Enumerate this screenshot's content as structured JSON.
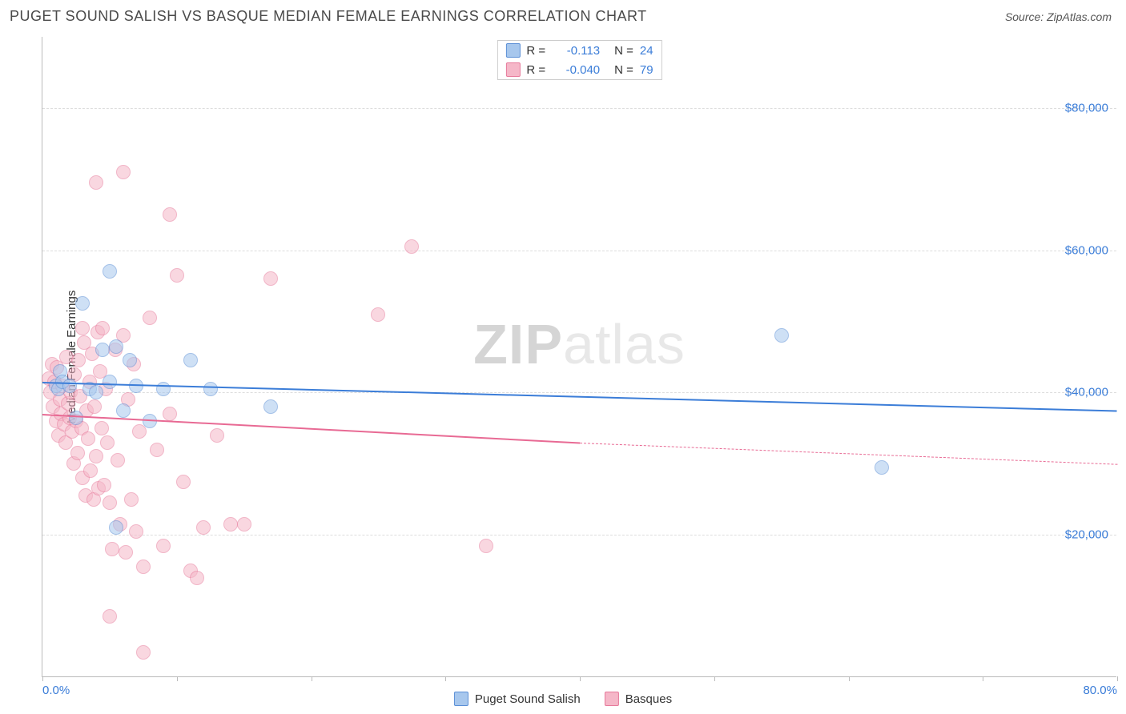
{
  "title": "PUGET SOUND SALISH VS BASQUE MEDIAN FEMALE EARNINGS CORRELATION CHART",
  "source": "Source: ZipAtlas.com",
  "ylabel": "Median Female Earnings",
  "watermark_a": "ZIP",
  "watermark_b": "atlas",
  "chart": {
    "type": "scatter",
    "xlim": [
      0,
      80
    ],
    "ylim": [
      0,
      90000
    ],
    "x_tick_positions": [
      0,
      10,
      20,
      30,
      40,
      50,
      60,
      70,
      80
    ],
    "x_tick_labels": {
      "0": "0.0%",
      "80": "80.0%"
    },
    "y_gridlines": [
      20000,
      40000,
      60000,
      80000
    ],
    "y_tick_labels": {
      "20000": "$20,000",
      "40000": "$40,000",
      "60000": "$60,000",
      "80000": "$80,000"
    },
    "background_color": "#ffffff",
    "grid_color": "#dddddd",
    "axis_color": "#bbbbbb",
    "tick_label_color": "#3b7dd8",
    "point_radius": 9,
    "point_opacity": 0.55,
    "series": [
      {
        "name": "Puget Sound Salish",
        "fill": "#a7c7ed",
        "stroke": "#5b8fd6",
        "r_label": "R =",
        "r_value": "-0.113",
        "n_label": "N =",
        "n_value": "24",
        "trend": {
          "x1": 0,
          "y1": 41500,
          "x2": 80,
          "y2": 37500,
          "color": "#3b7dd8",
          "width": 2.5,
          "dash": false
        },
        "points": [
          [
            1.0,
            41000
          ],
          [
            1.2,
            40500
          ],
          [
            1.3,
            43000
          ],
          [
            1.5,
            41500
          ],
          [
            2.0,
            41000
          ],
          [
            2.5,
            36500
          ],
          [
            3.0,
            52500
          ],
          [
            3.5,
            40500
          ],
          [
            4.0,
            40000
          ],
          [
            4.5,
            46000
          ],
          [
            5.0,
            41500
          ],
          [
            5.5,
            46500
          ],
          [
            6.0,
            37500
          ],
          [
            6.5,
            44500
          ],
          [
            7.0,
            41000
          ],
          [
            8.0,
            36000
          ],
          [
            9.0,
            40500
          ],
          [
            11.0,
            44500
          ],
          [
            12.5,
            40500
          ],
          [
            17.0,
            38000
          ],
          [
            5.5,
            21000
          ],
          [
            55.0,
            48000
          ],
          [
            62.5,
            29500
          ],
          [
            5.0,
            57000
          ]
        ]
      },
      {
        "name": "Basques",
        "fill": "#f5b7c8",
        "stroke": "#e77a9b",
        "r_label": "R =",
        "r_value": "-0.040",
        "n_label": "N =",
        "n_value": "79",
        "trend": {
          "x1": 0,
          "y1": 37000,
          "x2": 40,
          "y2": 33000,
          "color": "#e86a94",
          "width": 2,
          "dash": false
        },
        "trend_ext": {
          "x1": 40,
          "y1": 33000,
          "x2": 80,
          "y2": 30000,
          "color": "#e86a94",
          "width": 1,
          "dash": true
        },
        "points": [
          [
            0.5,
            42000
          ],
          [
            0.6,
            40000
          ],
          [
            0.7,
            44000
          ],
          [
            0.8,
            38000
          ],
          [
            0.9,
            41500
          ],
          [
            1.0,
            36000
          ],
          [
            1.1,
            43500
          ],
          [
            1.2,
            34000
          ],
          [
            1.3,
            39000
          ],
          [
            1.4,
            37000
          ],
          [
            1.5,
            41000
          ],
          [
            1.6,
            35500
          ],
          [
            1.7,
            33000
          ],
          [
            1.8,
            45000
          ],
          [
            1.9,
            38500
          ],
          [
            2.0,
            36500
          ],
          [
            2.1,
            40000
          ],
          [
            2.2,
            34500
          ],
          [
            2.3,
            30000
          ],
          [
            2.4,
            42500
          ],
          [
            2.5,
            36000
          ],
          [
            2.6,
            31500
          ],
          [
            2.7,
            44500
          ],
          [
            2.8,
            39500
          ],
          [
            2.9,
            35000
          ],
          [
            3.0,
            28000
          ],
          [
            3.1,
            47000
          ],
          [
            3.2,
            25500
          ],
          [
            3.3,
            37500
          ],
          [
            3.4,
            33500
          ],
          [
            3.5,
            41500
          ],
          [
            3.6,
            29000
          ],
          [
            3.7,
            45500
          ],
          [
            3.8,
            25000
          ],
          [
            3.9,
            38000
          ],
          [
            4.0,
            31000
          ],
          [
            4.1,
            48500
          ],
          [
            4.2,
            26500
          ],
          [
            4.3,
            43000
          ],
          [
            4.4,
            35000
          ],
          [
            4.5,
            49000
          ],
          [
            4.6,
            27000
          ],
          [
            4.7,
            40500
          ],
          [
            4.8,
            33000
          ],
          [
            5.0,
            24500
          ],
          [
            5.2,
            18000
          ],
          [
            5.4,
            46000
          ],
          [
            5.6,
            30500
          ],
          [
            5.8,
            21500
          ],
          [
            6.0,
            48000
          ],
          [
            6.2,
            17500
          ],
          [
            6.4,
            39000
          ],
          [
            6.6,
            25000
          ],
          [
            6.8,
            44000
          ],
          [
            7.0,
            20500
          ],
          [
            7.2,
            34500
          ],
          [
            7.5,
            15500
          ],
          [
            8.0,
            50500
          ],
          [
            8.5,
            32000
          ],
          [
            9.0,
            18500
          ],
          [
            9.5,
            37000
          ],
          [
            10.0,
            56500
          ],
          [
            10.5,
            27500
          ],
          [
            11.0,
            15000
          ],
          [
            11.5,
            14000
          ],
          [
            12.0,
            21000
          ],
          [
            13.0,
            34000
          ],
          [
            14.0,
            21500
          ],
          [
            15.0,
            21500
          ],
          [
            17.0,
            56000
          ],
          [
            6.0,
            71000
          ],
          [
            4.0,
            69500
          ],
          [
            9.5,
            65000
          ],
          [
            25.0,
            51000
          ],
          [
            27.5,
            60500
          ],
          [
            33.0,
            18500
          ],
          [
            5.0,
            8500
          ],
          [
            7.5,
            3500
          ],
          [
            3.0,
            49000
          ]
        ]
      }
    ]
  },
  "footer_legend": [
    {
      "label": "Puget Sound Salish",
      "fill": "#a7c7ed",
      "stroke": "#5b8fd6"
    },
    {
      "label": "Basques",
      "fill": "#f5b7c8",
      "stroke": "#e77a9b"
    }
  ]
}
